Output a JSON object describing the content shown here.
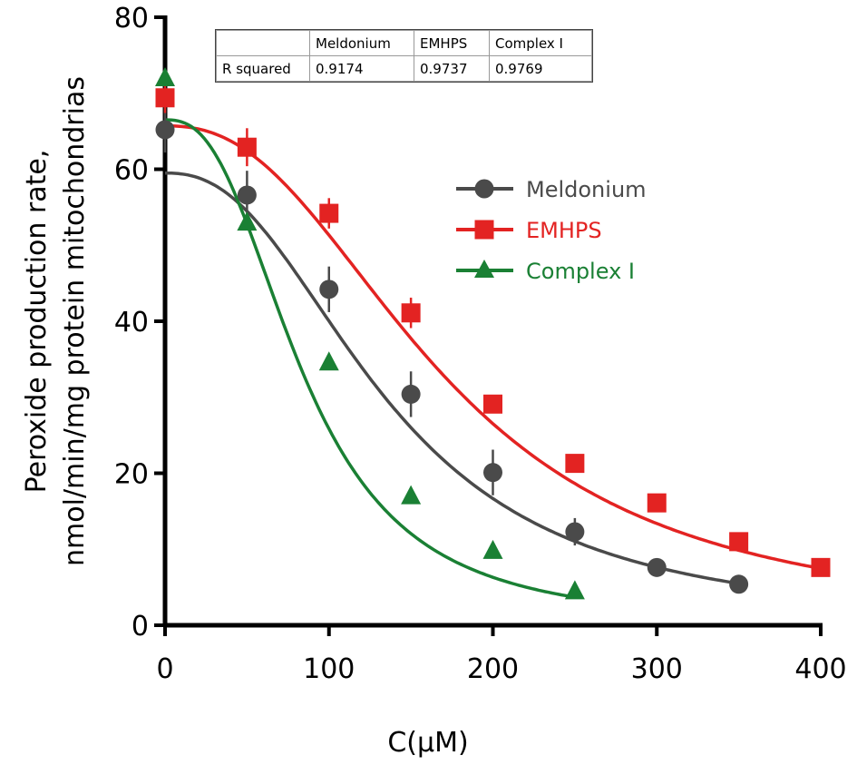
{
  "chart_data": {
    "type": "line",
    "title": "",
    "xlabel": "C(μM)",
    "ylabel_line1": "Peroxide production rate,",
    "ylabel_line2": "nmol/min/mg protein mitochondrias",
    "xlim": [
      0,
      400
    ],
    "ylim": [
      0,
      80
    ],
    "xticks": [
      0,
      100,
      200,
      300,
      400
    ],
    "yticks": [
      0,
      20,
      40,
      60,
      80
    ],
    "grid": false,
    "legend_position": "upper-right-center",
    "series": [
      {
        "name": "Meldonium",
        "color": "#4a4a4a",
        "marker": "circle",
        "x": [
          0,
          50,
          100,
          150,
          200,
          250,
          300,
          350
        ],
        "y": [
          65.2,
          56.6,
          44.2,
          30.4,
          20.1,
          12.3,
          7.6,
          5.4
        ],
        "err": [
          3,
          3.2,
          3,
          3,
          3,
          1.8,
          0,
          0
        ],
        "fit_top": 59.5,
        "fit_ec50": 135,
        "fit_hill": 2.4,
        "fit_xmax": 350
      },
      {
        "name": "EMHPS",
        "color": "#e32322",
        "marker": "square",
        "x": [
          0,
          50,
          100,
          150,
          200,
          250,
          300,
          350,
          400
        ],
        "y": [
          69.4,
          62.9,
          54.2,
          41.1,
          29.1,
          21.3,
          16.1,
          11.0,
          7.6
        ],
        "err": [
          2,
          2.5,
          2,
          2,
          0,
          0,
          0,
          0,
          0
        ],
        "fit_top": 65.7,
        "fit_ec50": 170,
        "fit_hill": 2.4,
        "fit_xmax": 400
      },
      {
        "name": "Complex I",
        "color": "#1a8034",
        "marker": "triangle",
        "x": [
          0,
          50,
          100,
          150,
          200,
          250
        ],
        "y": [
          72.0,
          53.0,
          34.6,
          17.0,
          9.8,
          4.5
        ],
        "err": [
          0,
          0,
          0,
          0,
          0,
          0
        ],
        "fit_top": 66.5,
        "fit_ec50": 84,
        "fit_hill": 2.6,
        "fit_xmax": 250
      }
    ],
    "rsquared_table": {
      "headers": [
        "",
        "Meldonium",
        "EMHPS",
        "Complex I"
      ],
      "row_label": "R squared",
      "values": [
        "0.9174",
        "0.9737",
        "0.9769"
      ]
    }
  }
}
